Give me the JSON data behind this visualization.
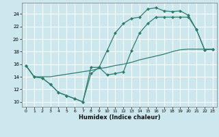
{
  "xlabel": "Humidex (Indice chaleur)",
  "bg_color": "#cce8ee",
  "grid_color": "#ffffff",
  "line_color": "#2e7d6b",
  "xlim": [
    -0.5,
    23.5
  ],
  "ylim": [
    9.2,
    25.8
  ],
  "xticks": [
    0,
    1,
    2,
    3,
    4,
    5,
    6,
    7,
    8,
    9,
    10,
    11,
    12,
    13,
    14,
    15,
    16,
    17,
    18,
    19,
    20,
    21,
    22,
    23
  ],
  "yticks": [
    10,
    12,
    14,
    16,
    18,
    20,
    22,
    24
  ],
  "line1_x": [
    0,
    1,
    2,
    3,
    4,
    5,
    6,
    7,
    8,
    9,
    10,
    11,
    12,
    13,
    14,
    15,
    16,
    17,
    18,
    19,
    20,
    21,
    22,
    23
  ],
  "line1_y": [
    15.8,
    14.0,
    13.8,
    12.8,
    11.5,
    11.0,
    10.5,
    10.0,
    15.5,
    15.5,
    18.2,
    21.0,
    22.5,
    23.3,
    23.5,
    24.8,
    25.0,
    24.5,
    24.4,
    24.5,
    23.8,
    21.5,
    18.3,
    18.4
  ],
  "line2_x": [
    0,
    1,
    2,
    3,
    4,
    5,
    6,
    7,
    8,
    9,
    10,
    11,
    12,
    13,
    14,
    15,
    16,
    17,
    18,
    19,
    20,
    21,
    22,
    23
  ],
  "line2_y": [
    15.8,
    14.0,
    13.8,
    12.8,
    11.5,
    11.0,
    10.5,
    10.0,
    14.5,
    15.5,
    14.3,
    14.5,
    14.8,
    18.2,
    21.0,
    22.5,
    23.5,
    23.5,
    23.5,
    23.5,
    23.5,
    21.5,
    18.3,
    18.4
  ],
  "line3_x": [
    0,
    1,
    2,
    3,
    4,
    5,
    6,
    7,
    8,
    9,
    10,
    11,
    12,
    13,
    14,
    15,
    16,
    17,
    18,
    19,
    20,
    21,
    22,
    23
  ],
  "line3_y": [
    15.8,
    14.0,
    14.0,
    14.0,
    14.2,
    14.4,
    14.6,
    14.8,
    15.0,
    15.3,
    15.5,
    15.8,
    16.0,
    16.3,
    16.7,
    17.0,
    17.3,
    17.6,
    18.0,
    18.3,
    18.4,
    18.4,
    18.4,
    18.4
  ]
}
